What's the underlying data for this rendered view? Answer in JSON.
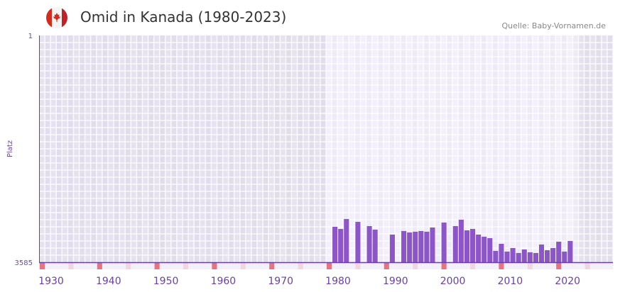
{
  "header": {
    "title": "Omid in Kanada (1980-2023)",
    "source": "Quelle: Baby-Vornamen.de",
    "flag_icon": "canada-flag-icon"
  },
  "colors": {
    "bar": "#8c55c8",
    "axis": "#6a3fa8",
    "decade_marker": "#e8737f",
    "half_decade_marker": "#f2d6df"
  },
  "chart_data": {
    "type": "bar",
    "title": "Omid in Kanada (1980-2023)",
    "xlabel": "",
    "ylabel": "Platz",
    "x_range": [
      1930,
      2030
    ],
    "highlight_range": [
      1980,
      2023
    ],
    "ylim": [
      3585,
      1
    ],
    "y_ticks": [
      "1",
      "3585"
    ],
    "x_ticks": [
      "1930",
      "1940",
      "1950",
      "1960",
      "1970",
      "1980",
      "1990",
      "2000",
      "2010",
      "2020"
    ],
    "categories": [
      1981,
      1982,
      1983,
      1985,
      1987,
      1988,
      1991,
      1993,
      1994,
      1995,
      1996,
      1997,
      1998,
      2000,
      2002,
      2003,
      2004,
      2005,
      2006,
      2007,
      2008,
      2009,
      2010,
      2011,
      2012,
      2013,
      2014,
      2015,
      2016,
      2017,
      2018,
      2019,
      2020,
      2021,
      2022
    ],
    "values": [
      3025,
      3059,
      2902,
      2947,
      3014,
      3070,
      3148,
      3092,
      3115,
      3103,
      3092,
      3103,
      3036,
      2958,
      3014,
      2913,
      3081,
      3059,
      3148,
      3182,
      3204,
      3406,
      3294,
      3417,
      3361,
      3439,
      3383,
      3428,
      3439,
      3305,
      3395,
      3361,
      3260,
      3417,
      3249
    ]
  }
}
